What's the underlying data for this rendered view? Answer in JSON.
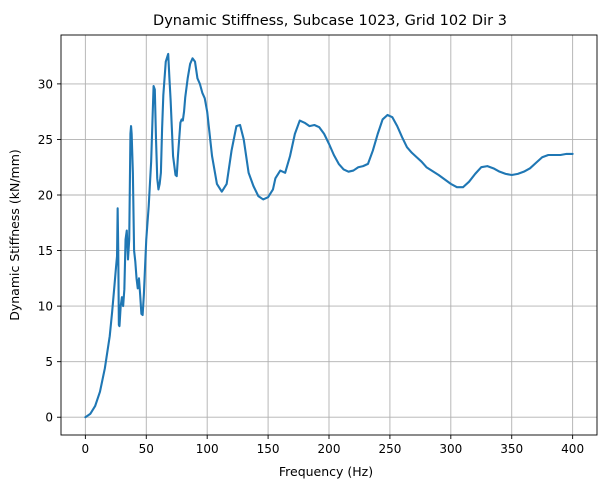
{
  "chart_data": {
    "type": "line",
    "title": "Dynamic Stiffness, Subcase 1023, Grid 102 Dir 3",
    "xlabel": "Frequency (Hz)",
    "ylabel": "Dynamic Stiffness (kN/mm)",
    "xlim": [
      -20,
      420
    ],
    "ylim": [
      -1.6,
      34.4
    ],
    "xticks": [
      0,
      50,
      100,
      150,
      200,
      250,
      300,
      350,
      400
    ],
    "yticks": [
      0,
      5,
      10,
      15,
      20,
      25,
      30
    ],
    "grid": true,
    "colors": {
      "line": "#1f77b4",
      "grid": "#b0b0b0",
      "axes": "#000000"
    },
    "series": [
      {
        "x": [
          0,
          4,
          8,
          12,
          16,
          20,
          22,
          24,
          25,
          26,
          26.5,
          27,
          27.5,
          28,
          29,
          30,
          31,
          32,
          33,
          34,
          35,
          36,
          37,
          37.5,
          38,
          39,
          40,
          41,
          42,
          43,
          44,
          45,
          46,
          47,
          48,
          49,
          50,
          52,
          54,
          56,
          57,
          58,
          59,
          60,
          61,
          62,
          63,
          64,
          66,
          68,
          69,
          70,
          71,
          72,
          74,
          75,
          76,
          78,
          79,
          80,
          81,
          82,
          84,
          86,
          88,
          90,
          92,
          94,
          96,
          98,
          100,
          104,
          108,
          112,
          116,
          120,
          124,
          127,
          130,
          134,
          138,
          142,
          146,
          150,
          154,
          156,
          160,
          164,
          168,
          172,
          176,
          180,
          184,
          188,
          192,
          196,
          200,
          204,
          208,
          212,
          216,
          220,
          224,
          228,
          232,
          236,
          240,
          244,
          248,
          252,
          256,
          260,
          264,
          268,
          272,
          276,
          280,
          290,
          300,
          305,
          310,
          315,
          320,
          325,
          330,
          335,
          340,
          345,
          350,
          355,
          360,
          365,
          370,
          375,
          380,
          385,
          390,
          395,
          400
        ],
        "values": [
          0.0,
          0.3,
          1.0,
          2.3,
          4.4,
          7.3,
          9.5,
          12.0,
          13.3,
          14.5,
          18.8,
          15.0,
          8.3,
          8.2,
          10.0,
          10.8,
          10.0,
          11.5,
          16.0,
          16.8,
          14.2,
          16.0,
          25.5,
          26.2,
          25.5,
          22.0,
          15.0,
          14.0,
          12.5,
          11.6,
          12.5,
          11.0,
          9.3,
          9.2,
          11.0,
          13.5,
          16.0,
          19.0,
          23.0,
          29.8,
          29.5,
          25.0,
          21.5,
          20.5,
          21.0,
          22.0,
          26.0,
          29.0,
          32.0,
          32.7,
          30.5,
          28.5,
          26.0,
          23.5,
          21.8,
          21.7,
          23.5,
          26.5,
          26.8,
          26.7,
          27.5,
          28.8,
          30.5,
          31.8,
          32.3,
          32.0,
          30.5,
          30.0,
          29.2,
          28.7,
          27.5,
          23.5,
          21.0,
          20.3,
          21.0,
          24.0,
          26.2,
          26.3,
          25.0,
          22.0,
          20.8,
          19.9,
          19.6,
          19.8,
          20.5,
          21.5,
          22.2,
          22.0,
          23.5,
          25.5,
          26.7,
          26.5,
          26.2,
          26.3,
          26.1,
          25.5,
          24.6,
          23.6,
          22.8,
          22.3,
          22.1,
          22.2,
          22.5,
          22.6,
          22.8,
          24.0,
          25.5,
          26.8,
          27.2,
          27.0,
          26.2,
          25.2,
          24.3,
          23.8,
          23.4,
          23.0,
          22.5,
          21.8,
          21.0,
          20.7,
          20.7,
          21.2,
          21.9,
          22.5,
          22.6,
          22.4,
          22.1,
          21.9,
          21.8,
          21.9,
          22.1,
          22.4,
          22.9,
          23.4,
          23.6,
          23.6,
          23.6,
          23.7,
          23.7
        ]
      }
    ]
  }
}
